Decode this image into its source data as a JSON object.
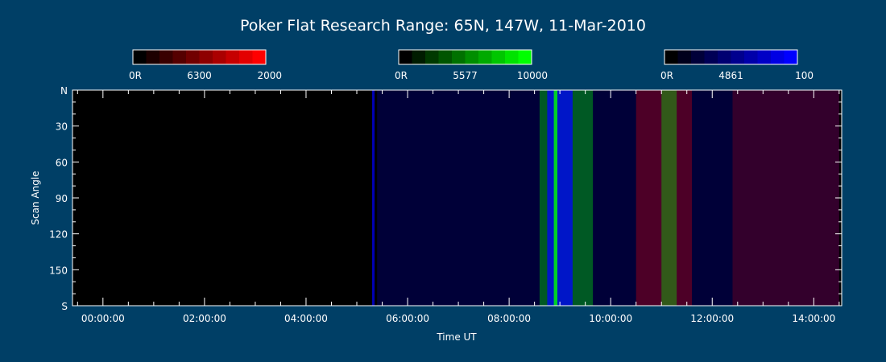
{
  "chart_data": {
    "type": "heatmap",
    "title": "Poker Flat Research Range: 65N, 147W, 11-Mar-2010",
    "xlabel": "Time UT",
    "ylabel": "Scan Angle",
    "x_ticks": [
      "00:00:00",
      "02:00:00",
      "04:00:00",
      "06:00:00",
      "08:00:00",
      "10:00:00",
      "12:00:00",
      "14:00:00"
    ],
    "x_tick_hours": [
      0,
      2,
      4,
      6,
      8,
      10,
      12,
      14
    ],
    "xlim_hours": [
      -0.6,
      14.55
    ],
    "y_ticks": [
      "N",
      "30",
      "60",
      "90",
      "120",
      "150",
      "S"
    ],
    "y_tick_values": [
      0,
      30,
      60,
      90,
      120,
      150,
      180
    ],
    "ylim": [
      0,
      180
    ],
    "colorbars": [
      {
        "name": "6300",
        "min_label": "0R",
        "max_label": "2000",
        "color_start": "#000000",
        "color_end": "#ff0000",
        "max_value": 2000
      },
      {
        "name": "5577",
        "min_label": "0R",
        "max_label": "10000",
        "color_start": "#000000",
        "color_end": "#00ff00",
        "max_value": 10000
      },
      {
        "name": "4861",
        "min_label": "0R",
        "max_label": "100",
        "color_start": "#000000",
        "color_end": "#0000ff",
        "max_value": 100
      }
    ],
    "features": [
      {
        "channel": "4861",
        "start_hour": 5.3,
        "end_hour": 5.35,
        "intensity": 0.7
      },
      {
        "channel": "4861",
        "start_hour": 5.4,
        "end_hour": 14.5,
        "intensity": 0.22
      },
      {
        "channel": "5577",
        "start_hour": 8.6,
        "end_hour": 9.65,
        "intensity": 0.35
      },
      {
        "channel": "4861",
        "start_hour": 8.75,
        "end_hour": 9.25,
        "intensity": 0.75
      },
      {
        "channel": "5577",
        "start_hour": 8.88,
        "end_hour": 8.95,
        "intensity": 0.8
      },
      {
        "channel": "6300",
        "start_hour": 10.5,
        "end_hour": 11.6,
        "intensity": 0.3
      },
      {
        "channel": "5577",
        "start_hour": 11.0,
        "end_hour": 11.3,
        "intensity": 0.35
      },
      {
        "channel": "6300",
        "start_hour": 12.4,
        "end_hour": 14.5,
        "intensity": 0.2
      }
    ]
  }
}
